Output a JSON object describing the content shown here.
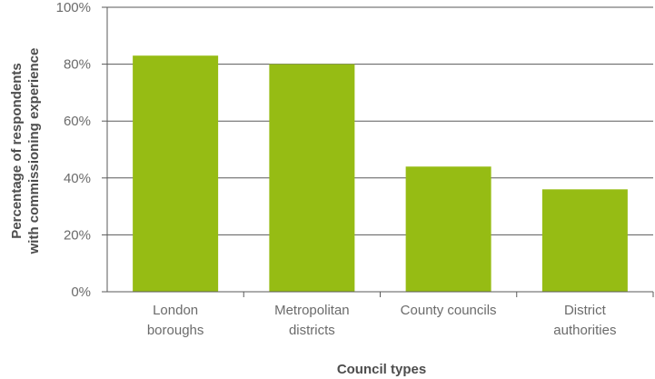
{
  "chart_data": {
    "type": "bar",
    "categories": [
      [
        "London",
        "boroughs"
      ],
      [
        "Metropolitan",
        "districts"
      ],
      [
        "County councils"
      ],
      [
        "District",
        "authorities"
      ]
    ],
    "values": [
      83,
      80,
      44,
      36
    ],
    "xlabel": "Council types",
    "ylabel": [
      "Percentage of respondents",
      "with commissioning experience"
    ],
    "ylim": [
      0,
      100
    ],
    "yticks": [
      0,
      20,
      40,
      60,
      80,
      100
    ],
    "ytick_labels": [
      "0%",
      "20%",
      "40%",
      "60%",
      "80%",
      "100%"
    ],
    "grid": true,
    "bar_color": "#96bc14",
    "gridline_color": "#5a5a5a"
  }
}
